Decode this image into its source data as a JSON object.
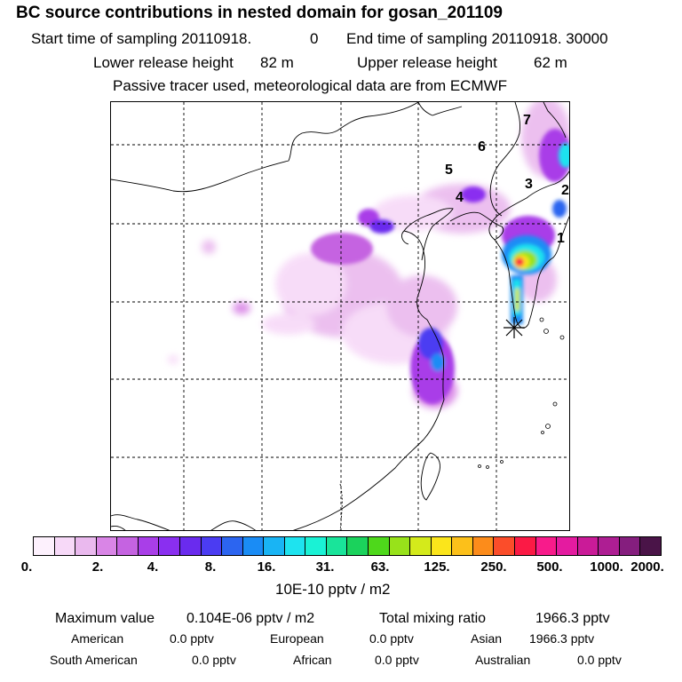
{
  "header": {
    "title": "BC  source contributions in nested domain for gosan_201109",
    "start_label": "Start time of sampling 20110918.",
    "start_value": "0",
    "end_label": "End time of sampling 20110918. 30000",
    "lower_label": "Lower release height",
    "lower_value": "82 m",
    "upper_label": "Upper release height",
    "upper_value": "62 m",
    "note": "Passive tracer used, meteorological data are from ECMWF"
  },
  "map": {
    "receptor_icon": "asterisk-icon",
    "labels": [
      "1",
      "2",
      "3",
      "4",
      "5",
      "6",
      "7"
    ]
  },
  "colorbar": {
    "colors": [
      "#fdf1fd",
      "#f7d9f8",
      "#eab9ee",
      "#d985e6",
      "#c563e1",
      "#a93ee8",
      "#8a2ff0",
      "#6a2bee",
      "#4b3cf2",
      "#2c65f0",
      "#1a8cf5",
      "#19b4f4",
      "#1ee3ef",
      "#1af2d5",
      "#19e49a",
      "#1bd25c",
      "#4ed81b",
      "#98e21a",
      "#d4ea1b",
      "#fbe51b",
      "#fcc01a",
      "#fc8c1b",
      "#fb4d2a",
      "#fb1a45",
      "#f81b8b",
      "#e41ba0",
      "#ca1b98",
      "#ae1e93",
      "#851e7e",
      "#4a1448"
    ],
    "ticks": [
      "0.",
      "2.",
      "4.",
      "8.",
      "16.",
      "31.",
      "63.",
      "125.",
      "250.",
      "500.",
      "1000.",
      "2000."
    ],
    "units": "10E-10 pptv / m2"
  },
  "stats": {
    "max_label": "Maximum value",
    "max_value": "0.104E-06 pptv / m2",
    "total_label": "Total mixing ratio",
    "total_value": "1966.3 pptv",
    "rows": [
      [
        {
          "label": "American",
          "value": "0.0 pptv"
        },
        {
          "label": "European",
          "value": "0.0 pptv"
        },
        {
          "label": "Asian",
          "value": "1966.3 pptv"
        }
      ],
      [
        {
          "label": "South American",
          "value": "0.0 pptv"
        },
        {
          "label": "African",
          "value": "0.0 pptv"
        },
        {
          "label": "Australian",
          "value": "0.0 pptv"
        }
      ]
    ]
  }
}
